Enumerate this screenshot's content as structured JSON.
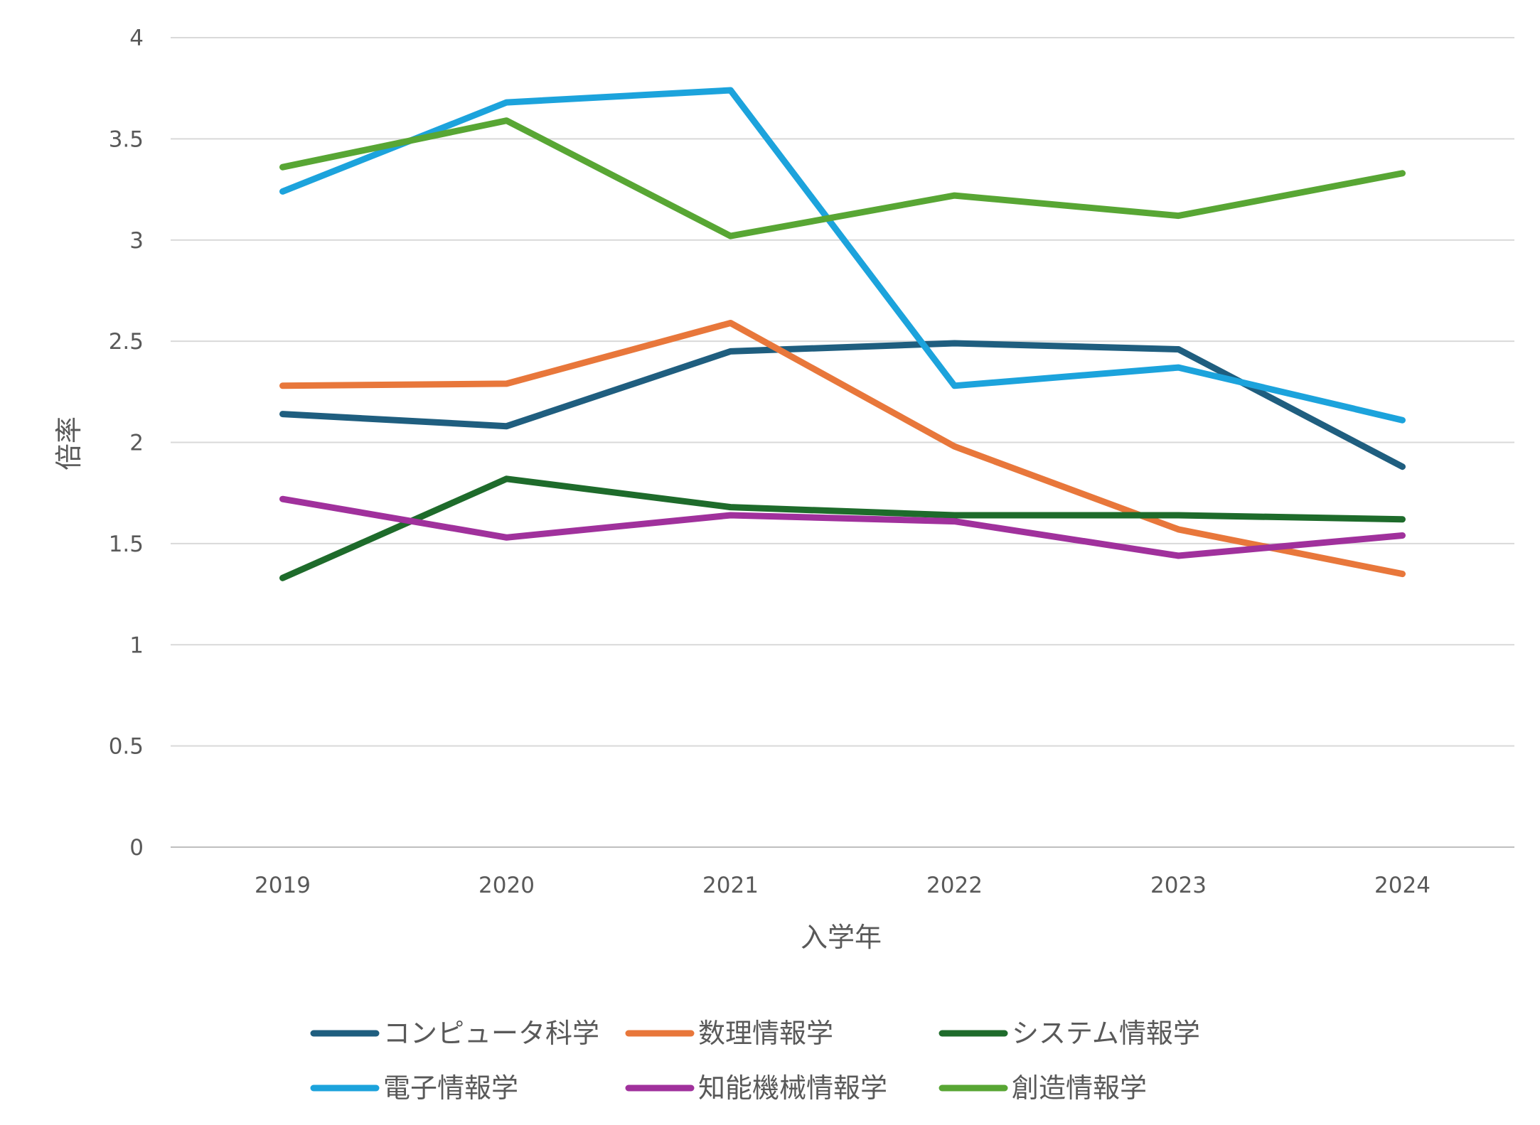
{
  "chart_data": {
    "type": "line",
    "title": "",
    "xlabel": "入学年",
    "ylabel": "倍率",
    "x": [
      "2019",
      "2020",
      "2021",
      "2022",
      "2023",
      "2024"
    ],
    "ylim": [
      0,
      4
    ],
    "yticks": [
      "0",
      "0.5",
      "1",
      "1.5",
      "2",
      "2.5",
      "3",
      "3.5",
      "4"
    ],
    "grid": true,
    "legend_position": "bottom",
    "series": [
      {
        "name": "コンピュータ科学",
        "color": "#1f5e7f",
        "values": [
          2.14,
          2.08,
          2.45,
          2.49,
          2.46,
          1.88
        ]
      },
      {
        "name": "数理情報学",
        "color": "#e8773b",
        "values": [
          2.28,
          2.29,
          2.59,
          1.98,
          1.57,
          1.35
        ]
      },
      {
        "name": "システム情報学",
        "color": "#1e6b2b",
        "values": [
          1.33,
          1.82,
          1.68,
          1.64,
          1.64,
          1.62
        ]
      },
      {
        "name": "電子情報学",
        "color": "#1ca3dc",
        "values": [
          3.24,
          3.68,
          3.74,
          2.28,
          2.37,
          2.11
        ]
      },
      {
        "name": "知能機械情報学",
        "color": "#a0319c",
        "values": [
          1.72,
          1.53,
          1.64,
          1.61,
          1.44,
          1.54
        ]
      },
      {
        "name": "創造情報学",
        "color": "#58a634",
        "values": [
          3.36,
          3.59,
          3.02,
          3.22,
          3.12,
          3.33
        ]
      }
    ]
  }
}
